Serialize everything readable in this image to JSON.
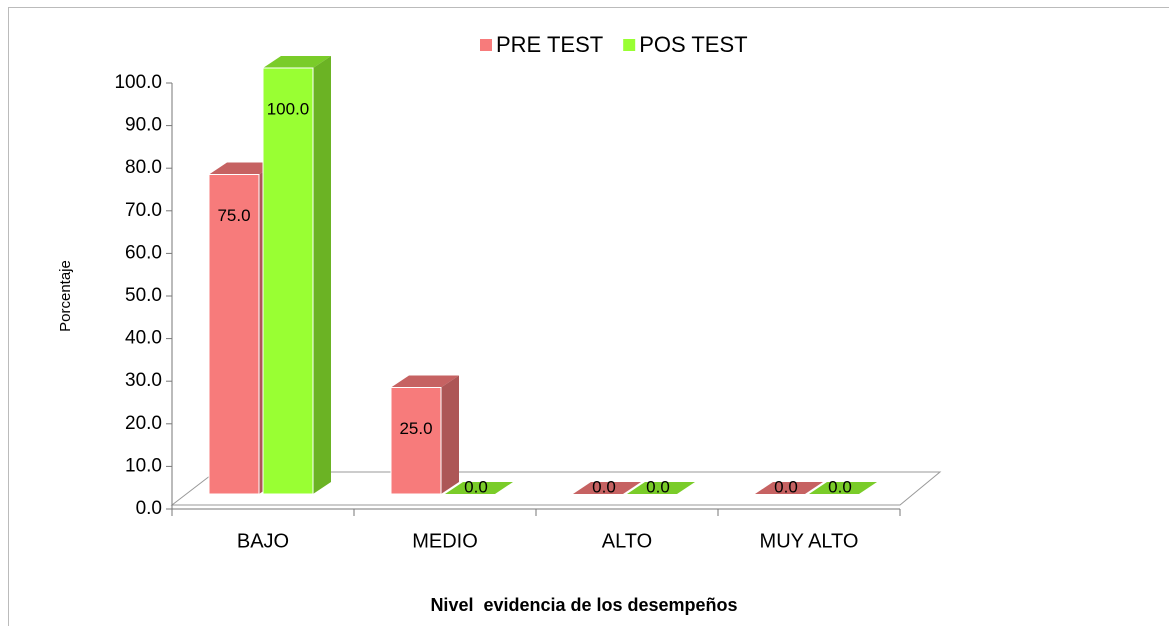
{
  "chart_data": {
    "type": "bar3d",
    "categories": [
      "BAJO",
      "MEDIO",
      "ALTO",
      "MUY ALTO"
    ],
    "series": [
      {
        "name": "PRE TEST",
        "color": "#f77b7b",
        "values": [
          75,
          25,
          0,
          0
        ],
        "value_labels": [
          "75.0",
          "25.0",
          "0.0",
          "0.0"
        ]
      },
      {
        "name": "POS TEST",
        "color": "#99ff33",
        "values": [
          100,
          0,
          0,
          0
        ],
        "value_labels": [
          "100.0",
          "0.0",
          "0.0",
          "0.0"
        ]
      }
    ],
    "ylabel": "Porcentaje",
    "xlabel": "Nivel  evidencia de los desempeños",
    "ylim": [
      0,
      100
    ],
    "yticks": [
      {
        "value": 0,
        "label": "0.0"
      },
      {
        "value": 10,
        "label": "10.0"
      },
      {
        "value": 20,
        "label": "20.0"
      },
      {
        "value": 30,
        "label": "30.0"
      },
      {
        "value": 40,
        "label": "40.0"
      },
      {
        "value": 50,
        "label": "50.0"
      },
      {
        "value": 60,
        "label": "60.0"
      },
      {
        "value": 70,
        "label": "70.0"
      },
      {
        "value": 80,
        "label": "80.0"
      },
      {
        "value": 90,
        "label": "90.0"
      },
      {
        "value": 100,
        "label": "100.0"
      }
    ],
    "legend": "top"
  }
}
